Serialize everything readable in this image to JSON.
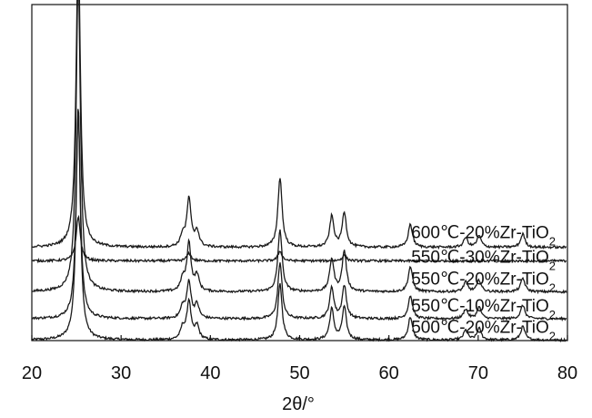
{
  "chart_data": {
    "type": "line",
    "xlabel": "2θ/°",
    "ylabel": "",
    "xlim": [
      20,
      80
    ],
    "xticks": [
      20,
      30,
      40,
      50,
      60,
      70,
      80
    ],
    "yticks_shown": false,
    "grid": false,
    "legend": "none",
    "line_color": "#1a1a1a",
    "series": [
      {
        "name": "500℃-20%Zr-TiO",
        "sub": "2",
        "baseline": 0.5,
        "peaks": [
          [
            25.2,
            12.0
          ],
          [
            36.9,
            0.6
          ],
          [
            37.6,
            2.0
          ],
          [
            38.5,
            0.7
          ],
          [
            47.8,
            2.9
          ],
          [
            53.6,
            1.6
          ],
          [
            55.0,
            1.7
          ],
          [
            62.4,
            1.2
          ],
          [
            68.6,
            0.5
          ],
          [
            70.1,
            0.6
          ],
          [
            75.0,
            0.7
          ]
        ]
      },
      {
        "name": "550℃-10%Zr-TiO",
        "sub": "2",
        "baseline": 1.6,
        "peaks": [
          [
            25.2,
            11.0
          ],
          [
            36.9,
            0.6
          ],
          [
            37.6,
            1.9
          ],
          [
            38.5,
            0.7
          ],
          [
            47.8,
            2.9
          ],
          [
            53.6,
            1.6
          ],
          [
            55.0,
            1.7
          ],
          [
            62.4,
            1.2
          ],
          [
            68.6,
            0.5
          ],
          [
            70.1,
            0.6
          ],
          [
            75.0,
            0.7
          ]
        ]
      },
      {
        "name": "550℃-20%Zr-TiO",
        "sub": "2",
        "baseline": 3.0,
        "peaks": [
          [
            25.2,
            16.5
          ],
          [
            36.9,
            0.6
          ],
          [
            37.6,
            2.5
          ],
          [
            38.5,
            0.8
          ],
          [
            47.8,
            3.2
          ],
          [
            53.6,
            1.7
          ],
          [
            55.0,
            2.1
          ],
          [
            62.4,
            1.3
          ],
          [
            68.6,
            0.5
          ],
          [
            70.1,
            0.6
          ],
          [
            75.0,
            0.7
          ]
        ]
      },
      {
        "name": "550℃-30%Zr-TiO",
        "sub": "2",
        "baseline": 4.6,
        "peaks": [
          [
            25.2,
            2.3
          ],
          [
            37.6,
            0.4
          ],
          [
            47.8,
            0.5
          ],
          [
            55.0,
            0.3
          ]
        ]
      },
      {
        "name": "600℃-20%Zr-TiO",
        "sub": "2",
        "baseline": 5.3,
        "peaks": [
          [
            25.2,
            16.0
          ],
          [
            36.9,
            0.6
          ],
          [
            37.6,
            2.5
          ],
          [
            38.5,
            0.8
          ],
          [
            47.8,
            3.6
          ],
          [
            53.6,
            1.6
          ],
          [
            55.0,
            1.8
          ],
          [
            62.4,
            1.2
          ],
          [
            68.6,
            0.5
          ],
          [
            70.1,
            0.6
          ],
          [
            75.0,
            0.7
          ]
        ]
      }
    ]
  }
}
